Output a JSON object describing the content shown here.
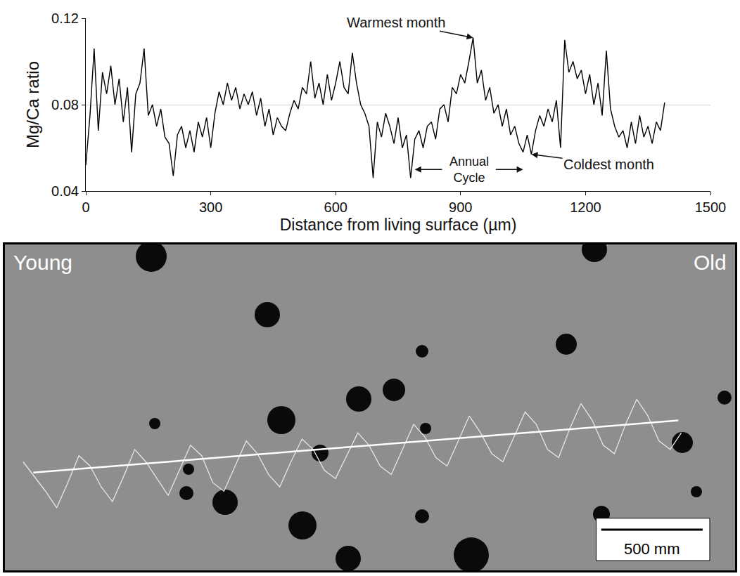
{
  "chart_data": [
    {
      "type": "line",
      "x_label": "Distance from living surface (µm)",
      "y_label": "Mg/Ca ratio",
      "color": "#000000",
      "grid": true,
      "xlim": [
        0,
        1500
      ],
      "xticks": [
        0,
        300,
        600,
        900,
        1200,
        1500
      ],
      "ylim": [
        0.04,
        0.12
      ],
      "yticks": [
        0.04,
        0.08,
        0.12
      ],
      "x": [
        0,
        10,
        20,
        30,
        40,
        50,
        60,
        70,
        80,
        90,
        100,
        110,
        120,
        130,
        140,
        150,
        160,
        170,
        180,
        190,
        200,
        210,
        220,
        230,
        240,
        250,
        260,
        270,
        280,
        290,
        300,
        310,
        320,
        330,
        340,
        350,
        360,
        370,
        380,
        390,
        400,
        410,
        420,
        430,
        440,
        450,
        460,
        470,
        480,
        490,
        500,
        510,
        520,
        530,
        540,
        550,
        560,
        570,
        580,
        590,
        600,
        610,
        620,
        630,
        640,
        650,
        660,
        670,
        680,
        690,
        700,
        710,
        720,
        730,
        740,
        750,
        760,
        770,
        780,
        790,
        800,
        810,
        820,
        830,
        840,
        850,
        860,
        870,
        880,
        890,
        900,
        910,
        920,
        930,
        940,
        950,
        960,
        970,
        980,
        990,
        1000,
        1010,
        1020,
        1030,
        1040,
        1050,
        1060,
        1070,
        1080,
        1090,
        1100,
        1110,
        1120,
        1130,
        1140,
        1150,
        1160,
        1170,
        1180,
        1190,
        1200,
        1210,
        1220,
        1230,
        1240,
        1250,
        1260,
        1270,
        1280,
        1290,
        1300,
        1310,
        1320,
        1330,
        1340,
        1350,
        1360,
        1370,
        1380,
        1390
      ],
      "values": [
        0.052,
        0.075,
        0.106,
        0.068,
        0.095,
        0.085,
        0.098,
        0.08,
        0.092,
        0.072,
        0.088,
        0.058,
        0.085,
        0.09,
        0.106,
        0.075,
        0.08,
        0.07,
        0.078,
        0.065,
        0.062,
        0.047,
        0.066,
        0.07,
        0.06,
        0.068,
        0.058,
        0.072,
        0.065,
        0.074,
        0.06,
        0.076,
        0.086,
        0.08,
        0.09,
        0.082,
        0.088,
        0.078,
        0.085,
        0.08,
        0.086,
        0.075,
        0.083,
        0.07,
        0.078,
        0.066,
        0.074,
        0.07,
        0.068,
        0.076,
        0.082,
        0.078,
        0.088,
        0.085,
        0.1,
        0.083,
        0.09,
        0.08,
        0.094,
        0.082,
        0.09,
        0.1,
        0.088,
        0.085,
        0.104,
        0.09,
        0.08,
        0.076,
        0.07,
        0.046,
        0.072,
        0.065,
        0.076,
        0.07,
        0.062,
        0.074,
        0.06,
        0.066,
        0.046,
        0.064,
        0.068,
        0.06,
        0.07,
        0.072,
        0.064,
        0.078,
        0.08,
        0.072,
        0.088,
        0.085,
        0.094,
        0.09,
        0.1,
        0.111,
        0.09,
        0.096,
        0.082,
        0.088,
        0.076,
        0.08,
        0.07,
        0.078,
        0.066,
        0.07,
        0.062,
        0.058,
        0.066,
        0.057,
        0.068,
        0.075,
        0.07,
        0.078,
        0.072,
        0.082,
        0.06,
        0.11,
        0.095,
        0.1,
        0.092,
        0.096,
        0.085,
        0.094,
        0.08,
        0.09,
        0.075,
        0.105,
        0.078,
        0.07,
        0.065,
        0.068,
        0.06,
        0.072,
        0.062,
        0.075,
        0.065,
        0.07,
        0.062,
        0.072,
        0.068,
        0.081
      ],
      "annotations": [
        {
          "text": "Warmest month",
          "x": 930,
          "y": 0.111
        },
        {
          "text": "Annual Cycle",
          "x": [
            790,
            1050
          ],
          "y": 0.05
        },
        {
          "text": "Coldest month",
          "x": 1070,
          "y": 0.057
        }
      ]
    },
    {
      "type": "line",
      "tick_labels": false,
      "color": "#e6e6e6",
      "xlim": [
        0,
        3600
      ],
      "ylim": [
        0,
        1
      ],
      "x": [
        90,
        145,
        200,
        255,
        310,
        365,
        420,
        475,
        530,
        585,
        640,
        695,
        750,
        805,
        860,
        915,
        970,
        1025,
        1080,
        1135,
        1190,
        1245,
        1300,
        1355,
        1410,
        1465,
        1520,
        1575,
        1630,
        1685,
        1740,
        1795,
        1850,
        1905,
        1960,
        2015,
        2070,
        2125,
        2180,
        2235,
        2290,
        2345,
        2400,
        2455,
        2510,
        2565,
        2620,
        2675,
        2730,
        2785,
        2840,
        2895,
        2950,
        3005,
        3060,
        3115,
        3170,
        3225,
        3280,
        3335
      ],
      "values": [
        0.333,
        0.288,
        0.243,
        0.192,
        0.269,
        0.352,
        0.32,
        0.256,
        0.211,
        0.288,
        0.371,
        0.333,
        0.282,
        0.23,
        0.307,
        0.384,
        0.352,
        0.269,
        0.243,
        0.32,
        0.397,
        0.358,
        0.294,
        0.256,
        0.333,
        0.403,
        0.371,
        0.307,
        0.282,
        0.352,
        0.422,
        0.384,
        0.32,
        0.294,
        0.371,
        0.448,
        0.41,
        0.346,
        0.32,
        0.397,
        0.474,
        0.422,
        0.358,
        0.333,
        0.41,
        0.486,
        0.448,
        0.371,
        0.346,
        0.435,
        0.512,
        0.461,
        0.384,
        0.358,
        0.448,
        0.525,
        0.474,
        0.397,
        0.371,
        0.422
      ],
      "trend": {
        "x": [
          140,
          3320
        ],
        "values": [
          0.3,
          0.46
        ]
      },
      "scale_bar": {
        "length": 500,
        "label": "500 mm"
      },
      "annotations": [
        {
          "text": "Young"
        },
        {
          "text": "Old"
        }
      ]
    }
  ]
}
